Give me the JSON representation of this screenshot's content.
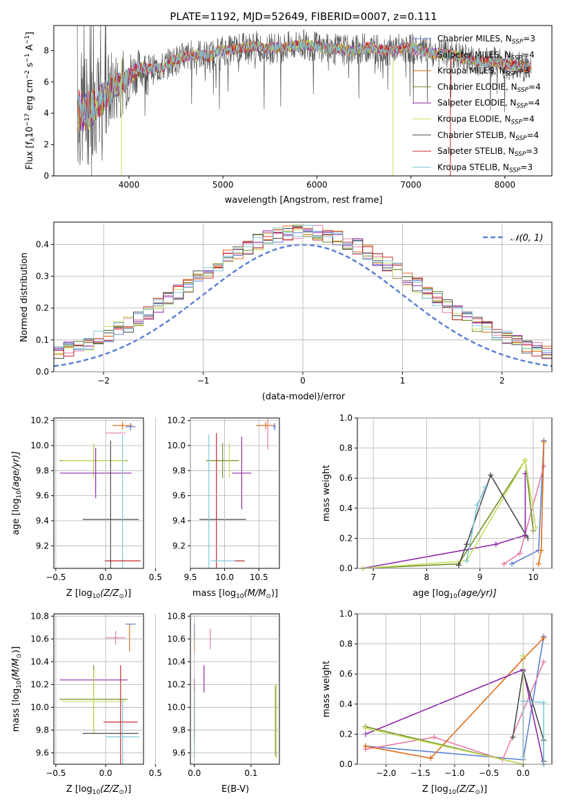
{
  "title": "PLATE=1192, MJD=52649, FIBERID=0007, z=0.111",
  "colors": {
    "c1": "#5b7fd6",
    "c2": "#e87aa8",
    "c3": "#e06a14",
    "c4": "#6b8e23",
    "c5": "#8e24aa",
    "c6": "#c8e05a",
    "c7": "#4a4a4a",
    "c8": "#c62828",
    "c9": "#7ec8d8"
  },
  "chart_data": [
    {
      "type": "line",
      "id": "spectrum",
      "xlabel": "wavelength [Angstrom, rest frame]",
      "ylabel": "Flux [f",
      "ylabel_sub": "λ",
      "ylabel_rest": "10",
      "ylabel_sup1": "−17",
      "ylabel_mid": " erg cm",
      "ylabel_sup2": "−2",
      "ylabel_mid2": " s",
      "ylabel_sup3": "−1",
      "ylabel_end": " A",
      "ylabel_sup4": "−1",
      "ylabel_close": "]",
      "xlim": [
        3200,
        8500
      ],
      "ylim": [
        0,
        9.6
      ],
      "xticks": [
        "4000",
        "5000",
        "6000",
        "7000",
        "8000"
      ],
      "yticks": [
        "0",
        "2",
        "4",
        "6",
        "8"
      ],
      "spectrum_shape": {
        "x": [
          3450,
          3550,
          3650,
          3750,
          3850,
          3950,
          4050,
          4150,
          4250,
          4350,
          4450,
          4550,
          4650,
          4750,
          4850,
          4950,
          5050,
          5150,
          5250,
          5350,
          5450,
          5550,
          5650,
          5750,
          5850,
          5950,
          6050,
          6150,
          6250,
          6350,
          6450,
          6550,
          6650,
          6750,
          6850,
          6950,
          7050,
          7150,
          7250,
          7350,
          7450,
          7550,
          7650,
          7750,
          7850,
          7950,
          8050,
          8150,
          8250
        ],
        "y": [
          4.2,
          4.1,
          4.5,
          5.2,
          5.7,
          6.0,
          6.6,
          6.9,
          6.8,
          6.9,
          7.3,
          7.5,
          7.7,
          7.8,
          7.6,
          8.0,
          8.0,
          8.1,
          8.2,
          8.3,
          8.1,
          8.2,
          8.2,
          8.3,
          8.4,
          8.3,
          8.2,
          8.1,
          8.1,
          8.0,
          8.1,
          8.2,
          8.1,
          8.0,
          8.1,
          8.2,
          8.1,
          7.9,
          7.8,
          7.8,
          7.7,
          7.5,
          7.4,
          7.3,
          7.3,
          7.2,
          7.1,
          7.0,
          6.9
        ]
      },
      "series": [
        {
          "label": "Chabrier MILES, N",
          "sub": "SSP",
          "tail": "=3",
          "color": "#5b7fd6"
        },
        {
          "label": "Salpeter MILES, N",
          "sub": "SSP",
          "tail": "=4",
          "color": "#e87aa8"
        },
        {
          "label": "Kroupa MILES, N",
          "sub": "SSP",
          "tail": "=3",
          "color": "#e06a14"
        },
        {
          "label": "Chabrier ELODIE, N",
          "sub": "SSP",
          "tail": "=4",
          "color": "#6b8e23"
        },
        {
          "label": "Salpeter ELODIE, N",
          "sub": "SSP",
          "tail": "=4",
          "color": "#8e24aa"
        },
        {
          "label": "Kroupa ELODIE, N",
          "sub": "SSP",
          "tail": "=4",
          "color": "#c8e05a"
        },
        {
          "label": "Chabrier STELIB, N",
          "sub": "SSP",
          "tail": "=4",
          "color": "#4a4a4a"
        },
        {
          "label": "Salpeter STELIB, N",
          "sub": "SSP",
          "tail": "=3",
          "color": "#c62828"
        },
        {
          "label": "Kroupa STELIB, N",
          "sub": "SSP",
          "tail": "=3",
          "color": "#7ec8d8"
        }
      ],
      "legend_position": "upper-right"
    },
    {
      "type": "line",
      "id": "residuals",
      "xlabel": "(data-model)/error",
      "ylabel": "Normed distribution",
      "xlim": [
        -2.5,
        2.5
      ],
      "ylim": [
        0,
        0.47
      ],
      "xticks": [
        "−2",
        "−1",
        "0",
        "1",
        "2"
      ],
      "yticks": [
        "0.0",
        "0.1",
        "0.2",
        "0.3",
        "0.4"
      ],
      "normal_label": "𝒩(0, 1)",
      "legend_position": "upper-right",
      "grid": true
    },
    {
      "type": "scatter",
      "id": "z-age",
      "xlabel": "Z [log",
      "xlabel_sub": "10",
      "xlabel_rest": "(Z/Z",
      "xlabel_sub2": "⊙",
      "xlabel_end": ")]",
      "ylabel": "age  [log",
      "ylabel_sub": "10",
      "ylabel_rest": "(age/yr)]",
      "xlim": [
        -0.52,
        0.38
      ],
      "ylim": [
        9.02,
        10.22
      ],
      "xticks": [
        "−0.5",
        "0.0",
        "0.5"
      ],
      "yticks": [
        "9.2",
        "9.4",
        "9.6",
        "9.8",
        "10.0",
        "10.2"
      ],
      "points": [
        {
          "x": 0.17,
          "y": 10.16,
          "xe": 0.1,
          "ye": 0.03,
          "color": "#e06a14"
        },
        {
          "x": 0.25,
          "y": 10.15,
          "xe": 0.05,
          "ye": 0.03,
          "color": "#5b7fd6"
        },
        {
          "x": 0.1,
          "y": 10.1,
          "xe": 0.1,
          "ye": 0.0,
          "color": "#e87aa8"
        },
        {
          "x": 0.05,
          "y": 9.88,
          "xe": 0.0,
          "ye": 0.04,
          "color": "#c8e05a"
        },
        {
          "x": -0.12,
          "y": 9.88,
          "xe": 0.34,
          "ye": 0.13,
          "color": "#6b8e23"
        },
        {
          "x": -0.12,
          "y": 9.88,
          "xe": 0.32,
          "ye": 0.14,
          "color": "#c8e05a"
        },
        {
          "x": -0.1,
          "y": 9.78,
          "xe": 0.36,
          "ye": 0.2,
          "color": "#8e24aa"
        },
        {
          "x": 0.05,
          "y": 9.41,
          "xe": 0.28,
          "ye": 0.63,
          "color": "#4a4a4a"
        },
        {
          "x": 0.17,
          "y": 9.08,
          "xe": 0.17,
          "ye": 1.01,
          "color": "#7ec8d8"
        },
        {
          "x": 0.17,
          "y": 9.08,
          "xe": 0.18,
          "ye": 0.0,
          "color": "#c62828"
        }
      ],
      "grid": true
    },
    {
      "type": "scatter",
      "id": "mass-age",
      "xlabel": "mass [log",
      "xlabel_sub": "10",
      "xlabel_rest": "(M/M",
      "xlabel_sub2": "⊙",
      "xlabel_end": ")]",
      "xlim": [
        9.5,
        10.8
      ],
      "ylim": [
        9.02,
        10.22
      ],
      "xticks": [
        "9.5",
        "10.0",
        "10.5"
      ],
      "yticks": [
        "9.2",
        "9.4",
        "9.6",
        "9.8",
        "10.0",
        "10.2"
      ],
      "points": [
        {
          "x": 10.6,
          "y": 10.16,
          "xe": 0.14,
          "ye": 0.03,
          "color": "#e06a14"
        },
        {
          "x": 10.73,
          "y": 10.15,
          "xe": 0.02,
          "ye": 0.03,
          "color": "#5b7fd6"
        },
        {
          "x": 10.63,
          "y": 10.1,
          "xe": 0.0,
          "ye": 0.13,
          "color": "#e87aa8"
        },
        {
          "x": 9.97,
          "y": 9.88,
          "xe": 0.24,
          "ye": 0.14,
          "color": "#6b8e23"
        },
        {
          "x": 10.07,
          "y": 9.88,
          "xe": 0.0,
          "ye": 0.14,
          "color": "#c8e05a"
        },
        {
          "x": 10.25,
          "y": 9.78,
          "xe": 0.14,
          "ye": 0.29,
          "color": "#8e24aa"
        },
        {
          "x": 9.97,
          "y": 9.41,
          "xe": 0.34,
          "ye": 0.0,
          "color": "#4a4a4a"
        },
        {
          "x": 9.88,
          "y": 9.08,
          "xe": 0.0,
          "ye": 1.02,
          "color": "#c62828"
        },
        {
          "x": 9.77,
          "y": 9.08,
          "xe": 0.0,
          "ye": 1.01,
          "color": "#7ec8d8"
        },
        {
          "x": 10.05,
          "y": 9.08,
          "xe": 0.25,
          "ye": 0.0,
          "color": "#7ec8d8"
        },
        {
          "x": 10.22,
          "y": 9.08,
          "xe": 0.07,
          "ye": 0.0,
          "color": "#c62828"
        }
      ],
      "grid": true
    },
    {
      "type": "line",
      "id": "age-weight",
      "xlabel": "age  [log",
      "xlabel_sub": "10",
      "xlabel_rest": "(age/yr)]",
      "ylabel": "mass weight",
      "xlim": [
        6.7,
        10.35
      ],
      "ylim": [
        0,
        1.0
      ],
      "xticks": [
        "7",
        "8",
        "9",
        "10"
      ],
      "yticks": [
        "0.0",
        "0.2",
        "0.4",
        "0.6",
        "0.8",
        "1.0"
      ],
      "series": [
        {
          "color": "#5b7fd6",
          "x": [
            9.6,
            10.1,
            10.2
          ],
          "y": [
            0.03,
            0.12,
            0.85
          ]
        },
        {
          "color": "#e87aa8",
          "x": [
            9.45,
            9.75,
            10.2
          ],
          "y": [
            0.03,
            0.1,
            0.68
          ]
        },
        {
          "color": "#e06a14",
          "x": [
            10.1,
            10.15,
            10.2
          ],
          "y": [
            0.03,
            0.12,
            0.84
          ]
        },
        {
          "color": "#6b8e23",
          "x": [
            6.8,
            8.6,
            9.85,
            10.0
          ],
          "y": [
            0.0,
            0.03,
            0.72,
            0.25
          ]
        },
        {
          "color": "#8e24aa",
          "x": [
            6.8,
            9.3,
            9.85,
            9.85
          ],
          "y": [
            0.0,
            0.16,
            0.22,
            0.63
          ]
        },
        {
          "color": "#c8e05a",
          "x": [
            6.8,
            8.75,
            9.85,
            10.05
          ],
          "y": [
            0.0,
            0.05,
            0.72,
            0.27
          ]
        },
        {
          "color": "#4a4a4a",
          "x": [
            8.6,
            8.75,
            9.2,
            9.9
          ],
          "y": [
            0.02,
            0.16,
            0.62,
            0.2
          ]
        },
        {
          "color": "#7ec8d8",
          "x": [
            8.75,
            8.95,
            9.1
          ],
          "y": [
            0.05,
            0.42,
            0.54
          ]
        }
      ],
      "grid": true
    },
    {
      "type": "scatter",
      "id": "z-mass",
      "xlabel": "Z [log",
      "xlabel_sub": "10",
      "xlabel_rest": "(Z/Z",
      "xlabel_sub2": "⊙",
      "xlabel_end": ")]",
      "ylabel": "mass [log",
      "ylabel_sub": "10",
      "ylabel_rest": "(M/M",
      "ylabel_sub2": "⊙",
      "ylabel_end": ")]",
      "xlim": [
        -0.52,
        0.38
      ],
      "ylim": [
        9.5,
        10.82
      ],
      "xticks": [
        "−0.5",
        "0.0",
        "0.5"
      ],
      "yticks": [
        "9.6",
        "9.8",
        "10.0",
        "10.2",
        "10.4",
        "10.6",
        "10.8"
      ],
      "points": [
        {
          "x": 0.25,
          "y": 10.73,
          "xe": 0.05,
          "ye": 0.0,
          "color": "#5b7fd6"
        },
        {
          "x": 0.24,
          "y": 10.61,
          "xe": 0.0,
          "ye": 0.12,
          "color": "#e06a14"
        },
        {
          "x": 0.1,
          "y": 10.61,
          "xe": 0.1,
          "ye": 0.06,
          "color": "#e87aa8"
        },
        {
          "x": -0.12,
          "y": 10.24,
          "xe": 0.34,
          "ye": 0.1,
          "color": "#8e24aa"
        },
        {
          "x": -0.12,
          "y": 10.07,
          "xe": 0.34,
          "ye": 0.3,
          "color": "#6b8e23"
        },
        {
          "x": -0.12,
          "y": 10.05,
          "xe": 0.32,
          "ye": 0.28,
          "color": "#c8e05a"
        },
        {
          "x": 0.15,
          "y": 9.87,
          "xe": 0.17,
          "ye": 0.5,
          "color": "#c62828"
        },
        {
          "x": 0.05,
          "y": 9.77,
          "xe": 0.28,
          "ye": 0.0,
          "color": "#4a4a4a"
        },
        {
          "x": 0.17,
          "y": 9.74,
          "xe": 0.17,
          "ye": 0.32,
          "color": "#7ec8d8"
        }
      ],
      "grid": true
    },
    {
      "type": "scatter",
      "id": "ebv-mass",
      "xlabel": "E(B-V)",
      "xlim": [
        -0.007,
        0.15
      ],
      "ylim": [
        9.5,
        10.82
      ],
      "xticks": [
        "0.0",
        "0.1"
      ],
      "yticks": [
        "9.6",
        "9.8",
        "10.0",
        "10.2",
        "10.4",
        "10.6",
        "10.8"
      ],
      "points": [
        {
          "x": 0.0,
          "y": 10.6,
          "ye": 0.12,
          "color": "#e06a14"
        },
        {
          "x": 0.0,
          "y": 10.67,
          "ye": 0.07,
          "color": "#5b7fd6"
        },
        {
          "x": 0.028,
          "y": 10.6,
          "ye": 0.09,
          "color": "#e87aa8"
        },
        {
          "x": 0.017,
          "y": 10.25,
          "ye": 0.12,
          "color": "#8e24aa"
        },
        {
          "x": 0.0,
          "y": 10.0,
          "ye": 0.25,
          "color": "#c62828"
        },
        {
          "x": 0.0,
          "y": 9.95,
          "ye": 0.25,
          "color": "#4a4a4a"
        },
        {
          "x": 0.0,
          "y": 9.85,
          "ye": 0.3,
          "color": "#7ec8d8"
        },
        {
          "x": 0.145,
          "y": 9.88,
          "ye": 0.33,
          "color": "#c8e05a"
        },
        {
          "x": 0.143,
          "y": 9.88,
          "ye": 0.31,
          "color": "#6b8e23"
        }
      ],
      "grid": true
    },
    {
      "type": "line",
      "id": "z-weight",
      "xlabel": "Z [log",
      "xlabel_sub": "10",
      "xlabel_rest": "(Z/Z",
      "xlabel_sub2": "⊙",
      "xlabel_end": ")]",
      "ylabel": "mass weight",
      "xlim": [
        -2.42,
        0.42
      ],
      "ylim": [
        0,
        1.0
      ],
      "xticks": [
        "−2.0",
        "−1.5",
        "−1.0",
        "−0.5",
        "0.0"
      ],
      "yticks": [
        "0.0",
        "0.2",
        "0.4",
        "0.6",
        "0.8",
        "1.0"
      ],
      "series": [
        {
          "color": "#5b7fd6",
          "x": [
            -2.3,
            0.0,
            0.3
          ],
          "y": [
            0.12,
            0.03,
            0.85
          ]
        },
        {
          "color": "#e87aa8",
          "x": [
            -2.3,
            -1.3,
            -0.3,
            0.3
          ],
          "y": [
            0.1,
            0.18,
            0.03,
            0.68
          ]
        },
        {
          "color": "#e06a14",
          "x": [
            -2.3,
            -1.35,
            0.0,
            0.3
          ],
          "y": [
            0.12,
            0.04,
            0.7,
            0.84
          ]
        },
        {
          "color": "#6b8e23",
          "x": [
            -2.3,
            0.0,
            0.0
          ],
          "y": [
            0.25,
            0.0,
            0.72
          ]
        },
        {
          "color": "#8e24aa",
          "x": [
            -2.3,
            0.0,
            0.3
          ],
          "y": [
            0.2,
            0.63,
            0.0
          ]
        },
        {
          "color": "#c8e05a",
          "x": [
            -2.3,
            0.0,
            0.0
          ],
          "y": [
            0.24,
            0.0,
            0.72
          ]
        },
        {
          "color": "#4a4a4a",
          "x": [
            -0.15,
            0.0,
            0.3,
            0.3
          ],
          "y": [
            0.18,
            0.62,
            0.16,
            0.02
          ]
        },
        {
          "color": "#7ec8d8",
          "x": [
            0.0,
            0.0,
            0.3,
            0.3
          ],
          "y": [
            0.05,
            0.42,
            0.41,
            0.0
          ]
        }
      ],
      "grid": true
    }
  ]
}
